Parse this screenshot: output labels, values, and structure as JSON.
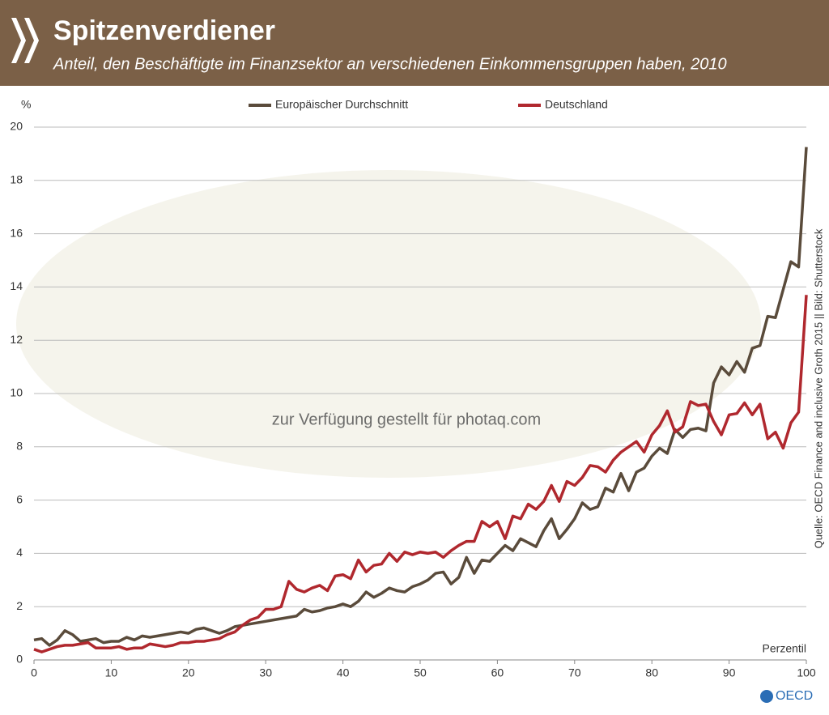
{
  "chart_data": {
    "type": "line",
    "title": "Spitzenverdiener",
    "subtitle": "Anteil, den Beschäftigte im Finanzsektor an verschiedenen Einkommensgruppen haben, 2010",
    "y_label": "%",
    "x_label": "Perzentil",
    "source": "Quelle: OECD Finance and inclusive Groth 2015 || Bild: Shutterstock",
    "watermark": "zur Verfügung gestellt für photaq.com",
    "logo": "OECD",
    "x": [
      0,
      1,
      2,
      3,
      4,
      5,
      6,
      7,
      8,
      9,
      10,
      11,
      12,
      13,
      14,
      15,
      16,
      17,
      18,
      19,
      20,
      21,
      22,
      23,
      24,
      25,
      26,
      27,
      28,
      29,
      30,
      31,
      32,
      33,
      34,
      35,
      36,
      37,
      38,
      39,
      40,
      41,
      42,
      43,
      44,
      45,
      46,
      47,
      48,
      49,
      50,
      51,
      52,
      53,
      54,
      55,
      56,
      57,
      58,
      59,
      60,
      61,
      62,
      63,
      64,
      65,
      66,
      67,
      68,
      69,
      70,
      71,
      72,
      73,
      74,
      75,
      76,
      77,
      78,
      79,
      80,
      81,
      82,
      83,
      84,
      85,
      86,
      87,
      88,
      89,
      90,
      91,
      92,
      93,
      94,
      95,
      96,
      97,
      98,
      99,
      100
    ],
    "series": [
      {
        "name": "Europäischer Durchschnitt",
        "color": "#5a4b3b",
        "values": [
          0.75,
          0.8,
          0.55,
          0.75,
          1.1,
          0.95,
          0.7,
          0.75,
          0.8,
          0.65,
          0.7,
          0.7,
          0.85,
          0.75,
          0.9,
          0.85,
          0.9,
          0.95,
          1.0,
          1.05,
          1.0,
          1.15,
          1.2,
          1.1,
          1.0,
          1.1,
          1.25,
          1.3,
          1.35,
          1.4,
          1.45,
          1.5,
          1.55,
          1.6,
          1.65,
          1.9,
          1.8,
          1.85,
          1.95,
          2.0,
          2.1,
          2.0,
          2.2,
          2.55,
          2.35,
          2.5,
          2.7,
          2.6,
          2.55,
          2.75,
          2.85,
          3.0,
          3.25,
          3.3,
          2.85,
          3.1,
          3.85,
          3.25,
          3.75,
          3.7,
          4.0,
          4.3,
          4.1,
          4.55,
          4.4,
          4.25,
          4.85,
          5.3,
          4.55,
          4.9,
          5.3,
          5.9,
          5.65,
          5.75,
          6.45,
          6.3,
          7.0,
          6.35,
          7.05,
          7.2,
          7.65,
          7.95,
          7.75,
          8.65,
          8.35,
          8.65,
          8.7,
          8.6,
          10.4,
          11.0,
          10.7,
          11.2,
          10.8,
          11.7,
          11.8,
          12.9,
          12.85,
          13.9,
          14.95,
          14.75,
          19.25
        ]
      },
      {
        "name": "Deutschland",
        "color": "#b0282e",
        "values": [
          0.4,
          0.3,
          0.4,
          0.5,
          0.55,
          0.55,
          0.6,
          0.65,
          0.45,
          0.45,
          0.45,
          0.5,
          0.4,
          0.45,
          0.45,
          0.6,
          0.55,
          0.5,
          0.55,
          0.65,
          0.65,
          0.7,
          0.7,
          0.75,
          0.8,
          0.95,
          1.05,
          1.3,
          1.5,
          1.6,
          1.9,
          1.9,
          2.0,
          2.95,
          2.65,
          2.55,
          2.7,
          2.8,
          2.6,
          3.15,
          3.2,
          3.05,
          3.75,
          3.3,
          3.55,
          3.6,
          4.0,
          3.7,
          4.05,
          3.95,
          4.05,
          4.0,
          4.05,
          3.85,
          4.1,
          4.3,
          4.45,
          4.45,
          5.2,
          5.0,
          5.2,
          4.55,
          5.4,
          5.3,
          5.85,
          5.65,
          5.95,
          6.55,
          5.95,
          6.7,
          6.55,
          6.85,
          7.3,
          7.25,
          7.05,
          7.5,
          7.8,
          8.0,
          8.2,
          7.8,
          8.45,
          8.8,
          9.35,
          8.55,
          8.75,
          9.7,
          9.55,
          9.6,
          8.95,
          8.45,
          9.2,
          9.25,
          9.65,
          9.2,
          9.6,
          8.3,
          8.55,
          7.95,
          8.9,
          9.3,
          13.7
        ]
      }
    ],
    "xlim": [
      0,
      100
    ],
    "xticks": [
      0,
      10,
      20,
      30,
      40,
      50,
      60,
      70,
      80,
      90,
      100
    ],
    "ylim": [
      0,
      20
    ],
    "yticks": [
      0,
      2,
      4,
      6,
      8,
      10,
      12,
      14,
      16,
      18,
      20
    ],
    "grid": true
  }
}
